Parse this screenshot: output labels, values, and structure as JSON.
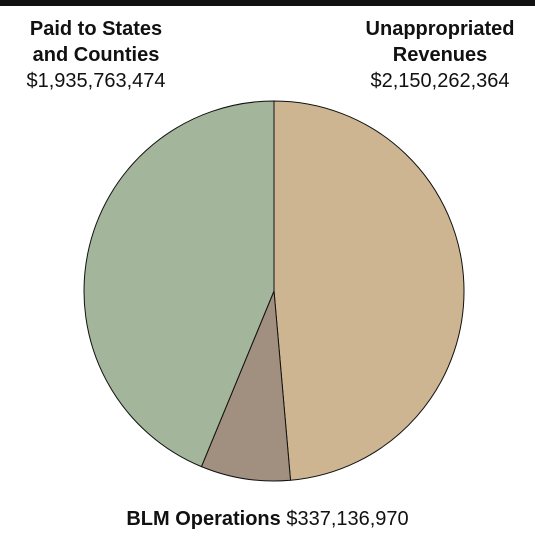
{
  "chart_data": {
    "type": "pie",
    "categories": [
      "Unappropriated Revenues",
      "BLM Operations",
      "Paid to States and Counties"
    ],
    "values": [
      2150262364,
      337136970,
      1935763474
    ],
    "value_labels": [
      "$2,150,262,364",
      "$337,136,970",
      "$1,935,763,474"
    ],
    "colors": [
      "#cdb592",
      "#a19080",
      "#a3b59b"
    ]
  }
}
